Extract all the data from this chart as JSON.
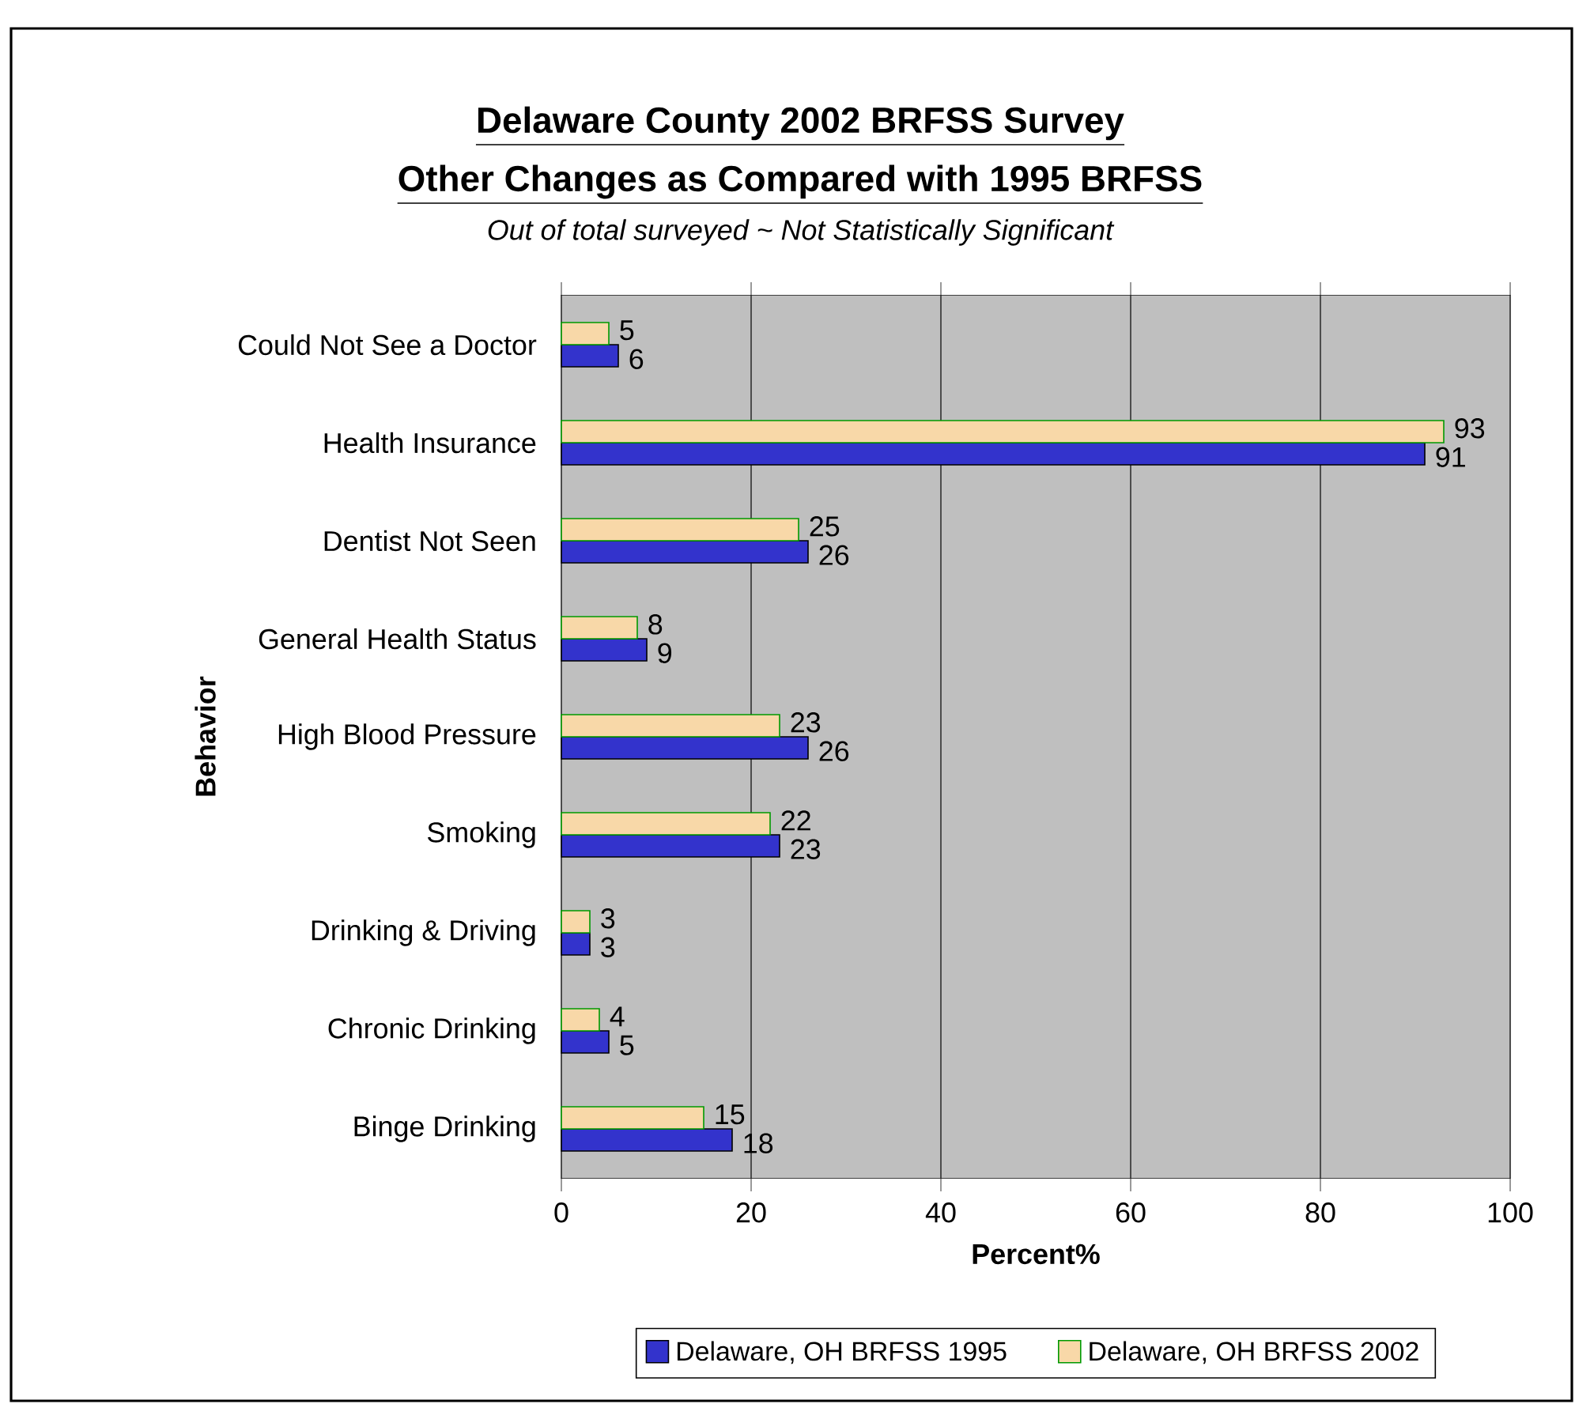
{
  "chart_data": {
    "type": "bar",
    "orientation": "horizontal",
    "title": "Delaware County 2002 BRFSS Survey",
    "subtitle": "Other Changes as Compared with 1995 BRFSS",
    "annotations": [
      "Out of total surveyed ~ Not Statistically Significant"
    ],
    "xlabel": "Percent%",
    "ylabel": "Behavior",
    "categories": [
      "Could Not See a Doctor",
      "Health Insurance",
      "Dentist Not Seen",
      "General Health Status",
      "High Blood Pressure",
      "Smoking",
      "Drinking & Driving",
      "Chronic Drinking",
      "Binge Drinking"
    ],
    "series": [
      {
        "name": "Delaware, OH BRFSS 1995",
        "color": "#3333cc",
        "values": [
          6,
          91,
          26,
          9,
          26,
          23,
          3,
          5,
          18
        ]
      },
      {
        "name": "Delaware, OH BRFSS 2002",
        "color": "#f8d8a8",
        "values": [
          5,
          93,
          25,
          8,
          23,
          22,
          3,
          4,
          15
        ]
      }
    ],
    "xlim": [
      0,
      100
    ],
    "xticks": [
      0,
      20,
      40,
      60,
      80,
      100
    ],
    "grid": "x",
    "legend": "bottom",
    "data_labels": true
  }
}
